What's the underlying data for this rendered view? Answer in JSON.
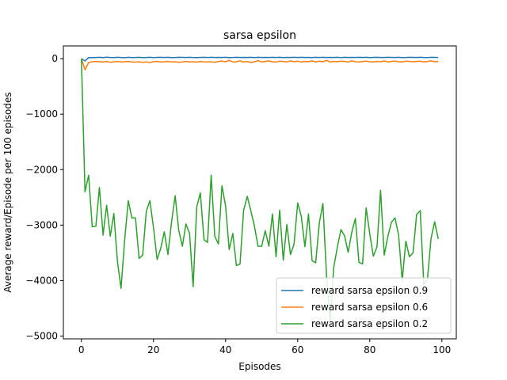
{
  "chart_data": {
    "type": "line",
    "title": "sarsa epsilon",
    "xlabel": "Episodes",
    "ylabel": "Average reward/Episode per 100 episodes",
    "xlim": [
      -5,
      104
    ],
    "ylim": [
      -5050,
      230
    ],
    "xticks": [
      0,
      20,
      40,
      60,
      80,
      100
    ],
    "yticks": [
      0,
      -1000,
      -2000,
      -3000,
      -4000,
      -5000
    ],
    "ytick_labels": [
      "0",
      "−1000",
      "−2000",
      "−3000",
      "−4000",
      "−5000"
    ],
    "legend_position": "lower-right",
    "grid": false,
    "x": [
      0,
      1,
      2,
      3,
      4,
      5,
      6,
      7,
      8,
      9,
      10,
      11,
      12,
      13,
      14,
      15,
      16,
      17,
      18,
      19,
      20,
      21,
      22,
      23,
      24,
      25,
      26,
      27,
      28,
      29,
      30,
      31,
      32,
      33,
      34,
      35,
      36,
      37,
      38,
      39,
      40,
      41,
      42,
      43,
      44,
      45,
      46,
      47,
      48,
      49,
      50,
      51,
      52,
      53,
      54,
      55,
      56,
      57,
      58,
      59,
      60,
      61,
      62,
      63,
      64,
      65,
      66,
      67,
      68,
      69,
      70,
      71,
      72,
      73,
      74,
      75,
      76,
      77,
      78,
      79,
      80,
      81,
      82,
      83,
      84,
      85,
      86,
      87,
      88,
      89,
      90,
      91,
      92,
      93,
      94,
      95,
      96,
      97,
      98,
      99
    ],
    "series": [
      {
        "name": "reward sarsa epsilon 0.9",
        "color": "#1f77b4",
        "values": [
          0,
          -40,
          20,
          18,
          22,
          25,
          20,
          26,
          22,
          20,
          25,
          22,
          18,
          24,
          20,
          22,
          25,
          20,
          22,
          24,
          20,
          23,
          25,
          22,
          24,
          20,
          22,
          25,
          23,
          21,
          24,
          22,
          20,
          23,
          25,
          22,
          24,
          21,
          23,
          22,
          25,
          20,
          22,
          24,
          21,
          23,
          22,
          25,
          20,
          24,
          22,
          23,
          21,
          25,
          22,
          24,
          20,
          23,
          22,
          25,
          21,
          24,
          22,
          23,
          20,
          25,
          22,
          24,
          21,
          23,
          22,
          24,
          20,
          25,
          22,
          23,
          21,
          24,
          22,
          25,
          20,
          23,
          24,
          22,
          21,
          25,
          23,
          22,
          24,
          20,
          22,
          25,
          23,
          21,
          24,
          22,
          20,
          25,
          23,
          22
        ]
      },
      {
        "name": "reward sarsa epsilon 0.6",
        "color": "#ff7f0e",
        "values": [
          0,
          -200,
          -70,
          -55,
          -50,
          -55,
          -60,
          -50,
          -65,
          -55,
          -50,
          -60,
          -55,
          -50,
          -58,
          -62,
          -55,
          -65,
          -60,
          -70,
          -55,
          -50,
          -60,
          -55,
          -50,
          -60,
          -55,
          -65,
          -58,
          -50,
          -60,
          -55,
          -62,
          -50,
          -58,
          -60,
          -55,
          -65,
          -50,
          -45,
          -55,
          -30,
          -60,
          -55,
          -40,
          -60,
          -50,
          -70,
          -55,
          -35,
          -60,
          -50,
          -40,
          -55,
          -60,
          -45,
          -50,
          -60,
          -40,
          -55,
          -45,
          -60,
          -50,
          -55,
          -40,
          -60,
          -45,
          -55,
          -30,
          -60,
          -50,
          -55,
          -45,
          -50,
          -60,
          -40,
          -55,
          -60,
          -50,
          -45,
          -55,
          -60,
          -50,
          -55,
          -40,
          -60,
          -50,
          -45,
          -55,
          -60,
          -45,
          -50,
          -55,
          -50,
          -45,
          -60,
          -50,
          -40,
          -55,
          -50
        ]
      },
      {
        "name": "reward sarsa epsilon 0.2",
        "color": "#2ca02c",
        "values": [
          0,
          -2400,
          -2100,
          -3030,
          -3020,
          -2320,
          -3180,
          -2640,
          -3200,
          -2790,
          -3660,
          -4140,
          -3260,
          -2560,
          -2870,
          -2870,
          -3600,
          -3540,
          -2750,
          -2560,
          -3050,
          -3620,
          -3420,
          -3120,
          -3530,
          -2950,
          -2470,
          -3090,
          -3380,
          -2980,
          -3150,
          -4110,
          -2670,
          -2420,
          -3260,
          -3310,
          -2100,
          -3200,
          -3340,
          -2290,
          -2660,
          -3440,
          -3150,
          -3730,
          -3700,
          -2740,
          -2480,
          -2740,
          -3020,
          -3380,
          -3380,
          -3100,
          -3380,
          -2800,
          -3570,
          -2730,
          -3630,
          -2990,
          -3530,
          -3340,
          -2600,
          -2840,
          -3390,
          -2800,
          -3640,
          -3680,
          -2960,
          -2610,
          -3910,
          -4720,
          -3760,
          -3400,
          -3080,
          -3190,
          -3490,
          -3130,
          -2880,
          -3670,
          -3700,
          -2690,
          -3160,
          -3560,
          -3390,
          -2370,
          -3540,
          -3210,
          -2950,
          -2870,
          -3180,
          -4000,
          -3290,
          -3570,
          -3500,
          -2810,
          -2740,
          -4080,
          -3970,
          -3240,
          -2940,
          -3250
        ]
      }
    ]
  }
}
